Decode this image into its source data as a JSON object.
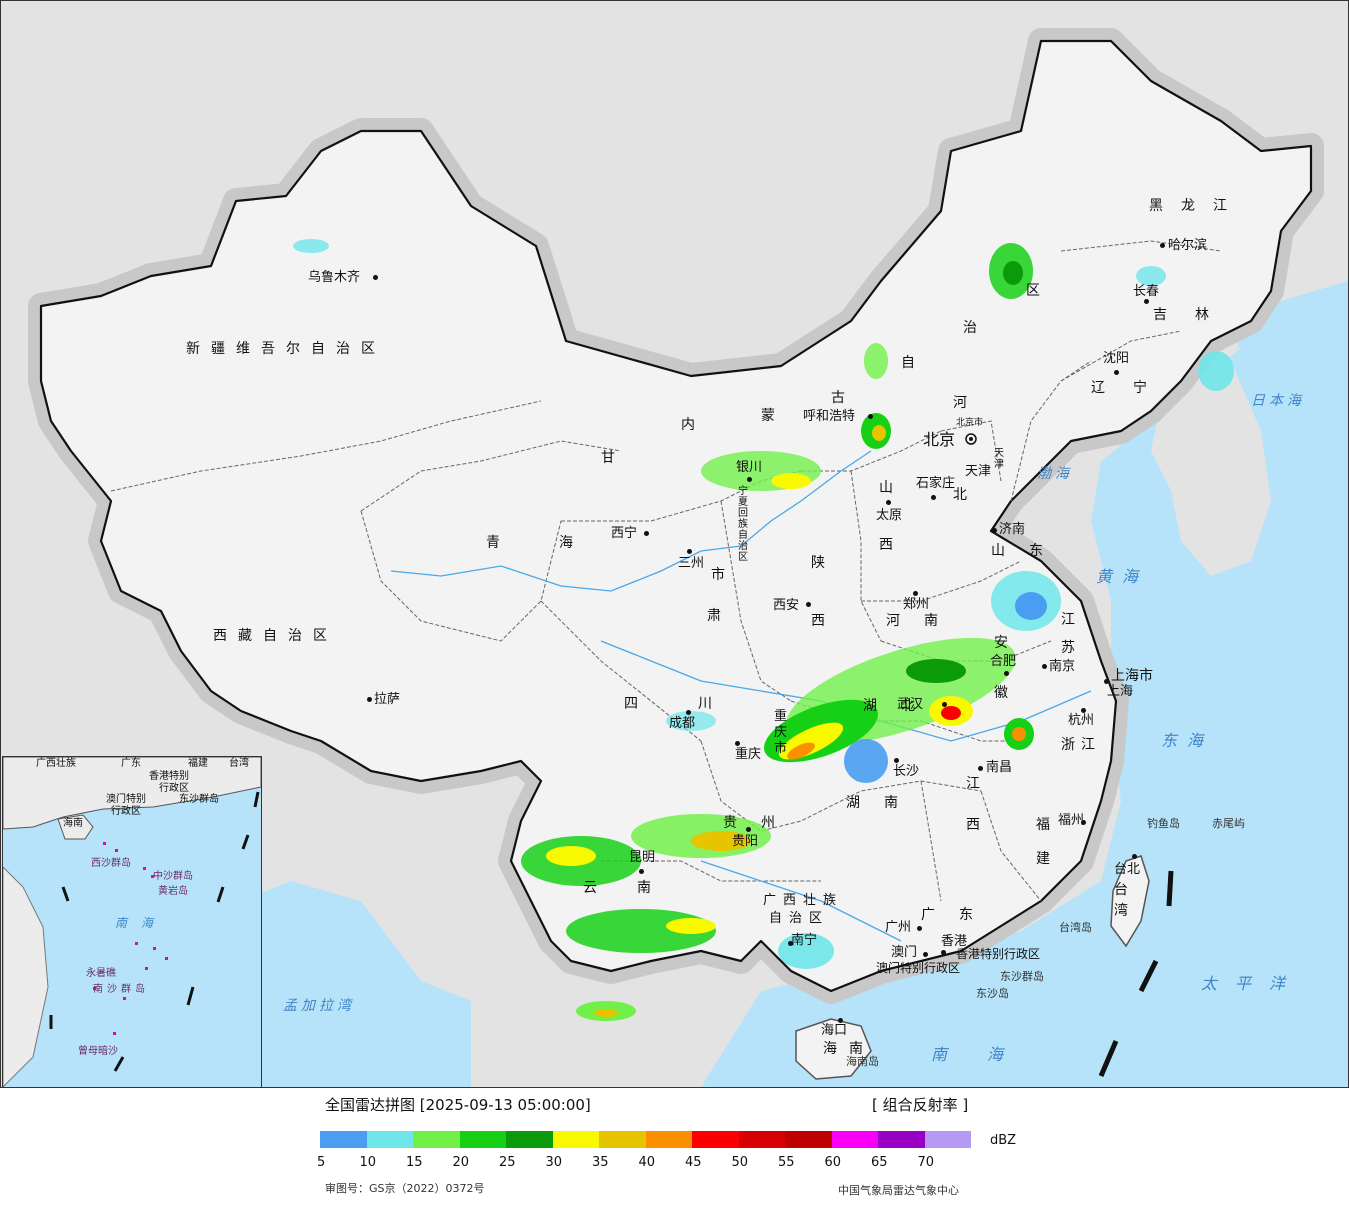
{
  "map": {
    "province_labels": [
      {
        "id": "xinjiang",
        "text": "新疆维吾尔自治区"
      },
      {
        "id": "xizang",
        "text": "西藏自治区"
      },
      {
        "id": "qinghai-1",
        "text": "青"
      },
      {
        "id": "qinghai-2",
        "text": "海"
      },
      {
        "id": "gansu-1",
        "text": "甘"
      },
      {
        "id": "gansu-2",
        "text": "肃"
      },
      {
        "id": "neimenggu-1",
        "text": "内"
      },
      {
        "id": "neimenggu-2",
        "text": "蒙"
      },
      {
        "id": "neimenggu-3",
        "text": "古"
      },
      {
        "id": "neimenggu-4",
        "text": "自"
      },
      {
        "id": "neimenggu-5",
        "text": "治"
      },
      {
        "id": "neimenggu-6",
        "text": "区"
      },
      {
        "id": "ningxia",
        "text": "宁夏回族自治区"
      },
      {
        "id": "sichuan",
        "text": "四川"
      },
      {
        "id": "shaanxi-1",
        "text": "陕"
      },
      {
        "id": "shaanxi-2",
        "text": "西"
      },
      {
        "id": "shanxi-1",
        "text": "山"
      },
      {
        "id": "shanxi-2",
        "text": "西"
      },
      {
        "id": "hebei-1",
        "text": "河"
      },
      {
        "id": "hebei-2",
        "text": "北"
      },
      {
        "id": "henan",
        "text": "河南"
      },
      {
        "id": "hubei",
        "text": "湖北"
      },
      {
        "id": "hunan",
        "text": "湖南"
      },
      {
        "id": "guizhou",
        "text": "贵州"
      },
      {
        "id": "yunnan",
        "text": "云南"
      },
      {
        "id": "guangxi-1",
        "text": "广西壮族"
      },
      {
        "id": "guangxi-2",
        "text": "自治区"
      },
      {
        "id": "guangdong",
        "text": "广东"
      },
      {
        "id": "jiangxi-1",
        "text": "江"
      },
      {
        "id": "jiangxi-2",
        "text": "西"
      },
      {
        "id": "fujian-1",
        "text": "福"
      },
      {
        "id": "fujian-2",
        "text": "建"
      },
      {
        "id": "zhejiang",
        "text": "浙江"
      },
      {
        "id": "anhui-1",
        "text": "安"
      },
      {
        "id": "anhui-2",
        "text": "徽"
      },
      {
        "id": "jiangsu-1",
        "text": "江"
      },
      {
        "id": "jiangsu-2",
        "text": "苏"
      },
      {
        "id": "shandong",
        "text": "山东"
      },
      {
        "id": "liaoning",
        "text": "辽宁"
      },
      {
        "id": "jilin",
        "text": "吉林"
      },
      {
        "id": "heilongjiang",
        "text": "黑龙江"
      },
      {
        "id": "hainan",
        "text": "海南"
      },
      {
        "id": "taiwan-1",
        "text": "台"
      },
      {
        "id": "taiwan-2",
        "text": "湾"
      },
      {
        "id": "chongqing",
        "text": "重庆市"
      },
      {
        "id": "shanghai",
        "text": "上海市"
      },
      {
        "id": "tianjin",
        "text": "天津"
      },
      {
        "id": "beijing-small",
        "text": "北京市"
      },
      {
        "id": "hk-sar",
        "text": "香港特别行政区"
      },
      {
        "id": "macau-sar",
        "text": "澳门特别行政区"
      },
      {
        "id": "tianjin-city",
        "text": "天津"
      },
      {
        "id": "lanzhou-city-label",
        "text": "市"
      }
    ],
    "city_labels": [
      {
        "id": "urumqi",
        "text": "乌鲁木齐"
      },
      {
        "id": "lhasa",
        "text": "拉萨"
      },
      {
        "id": "xining",
        "text": "西宁"
      },
      {
        "id": "lanzhou",
        "text": "三州"
      },
      {
        "id": "yinchuan",
        "text": "银川"
      },
      {
        "id": "hohhot",
        "text": "呼和浩特"
      },
      {
        "id": "beijing",
        "text": "北京"
      },
      {
        "id": "taiyuan",
        "text": "太原"
      },
      {
        "id": "shijiazhuang",
        "text": "石家庄"
      },
      {
        "id": "jinan",
        "text": "济南"
      },
      {
        "id": "zhengzhou",
        "text": "郑州"
      },
      {
        "id": "xian",
        "text": "西安"
      },
      {
        "id": "chengdu",
        "text": "成都"
      },
      {
        "id": "chongqing-c",
        "text": "重庆"
      },
      {
        "id": "guiyang",
        "text": "贵阳"
      },
      {
        "id": "kunming",
        "text": "昆明"
      },
      {
        "id": "nanning",
        "text": "南宁"
      },
      {
        "id": "guangzhou",
        "text": "广州"
      },
      {
        "id": "hongkong",
        "text": "香港"
      },
      {
        "id": "macau",
        "text": "澳门"
      },
      {
        "id": "haikou",
        "text": "海口"
      },
      {
        "id": "changsha",
        "text": "长沙"
      },
      {
        "id": "nanchang",
        "text": "南昌"
      },
      {
        "id": "fuzhou",
        "text": "福州"
      },
      {
        "id": "taibei",
        "text": "台北"
      },
      {
        "id": "hangzhou",
        "text": "杭州"
      },
      {
        "id": "shanghai-c",
        "text": "上海"
      },
      {
        "id": "nanjing",
        "text": "南京"
      },
      {
        "id": "hefei",
        "text": "合肥"
      },
      {
        "id": "wuhan",
        "text": "武汉"
      },
      {
        "id": "shenyang",
        "text": "沈阳"
      },
      {
        "id": "changchun",
        "text": "长春"
      },
      {
        "id": "harbin",
        "text": "哈尔滨"
      }
    ],
    "sea_labels": [
      {
        "id": "bohai",
        "text": "渤海"
      },
      {
        "id": "huanghai",
        "text": "黄海"
      },
      {
        "id": "donghai",
        "text": "东海"
      },
      {
        "id": "nanhai",
        "text": "南海"
      },
      {
        "id": "taipingyang",
        "text": "太平洋"
      },
      {
        "id": "riben",
        "text": "日本海"
      },
      {
        "id": "mengjiala",
        "text": "孟加拉湾"
      }
    ],
    "island_labels": [
      {
        "id": "diaoyu",
        "text": "钓鱼岛"
      },
      {
        "id": "chiwei",
        "text": "赤尾屿"
      },
      {
        "id": "taiwan-dao",
        "text": "台湾岛"
      },
      {
        "id": "dongsha-qundao",
        "text": "东沙群岛"
      },
      {
        "id": "dongsha-dao",
        "text": "东沙岛"
      },
      {
        "id": "hainan-dao",
        "text": "海南岛"
      }
    ],
    "inset_labels": [
      {
        "id": "i-guangxi",
        "text": "广西壮族"
      },
      {
        "id": "i-guangdong",
        "text": "广东"
      },
      {
        "id": "i-fujian",
        "text": "福建"
      },
      {
        "id": "i-taiwan",
        "text": "台湾"
      },
      {
        "id": "i-hk",
        "text": "香港特别"
      },
      {
        "id": "i-hk2",
        "text": "行政区"
      },
      {
        "id": "i-macau",
        "text": "澳门特别"
      },
      {
        "id": "i-macau2",
        "text": "行政区"
      },
      {
        "id": "i-dongsha",
        "text": "东沙群岛"
      },
      {
        "id": "i-hainan",
        "text": "海南"
      },
      {
        "id": "i-xisha",
        "text": "西沙群岛"
      },
      {
        "id": "i-zhongsha",
        "text": "中沙群岛"
      },
      {
        "id": "i-huangyan",
        "text": "黄岩岛"
      },
      {
        "id": "i-nanhai",
        "text": "南海"
      },
      {
        "id": "i-nansha",
        "text": "南沙群岛"
      },
      {
        "id": "i-yongshu",
        "text": "永暑礁"
      },
      {
        "id": "i-zengmu",
        "text": "曾母暗沙"
      }
    ]
  },
  "legend": {
    "title": "全国雷达拼图 [2025-09-13 05:00:00]",
    "product": "[ 组合反射率 ]",
    "unit": "dBZ",
    "colors": [
      "#4a9df0",
      "#6ee6ea",
      "#72f04a",
      "#16d016",
      "#0a9a0a",
      "#f8f800",
      "#e6c400",
      "#fb8f00",
      "#fb0000",
      "#d80000",
      "#bf0000",
      "#f800f8",
      "#9a00c4",
      "#b49af0"
    ],
    "ticks": [
      "5",
      "10",
      "15",
      "20",
      "25",
      "30",
      "35",
      "40",
      "45",
      "50",
      "55",
      "60",
      "65",
      "70"
    ],
    "review_number": "审图号：GS京（2022）0372号",
    "provider": "中国气象局雷达气象中心"
  }
}
